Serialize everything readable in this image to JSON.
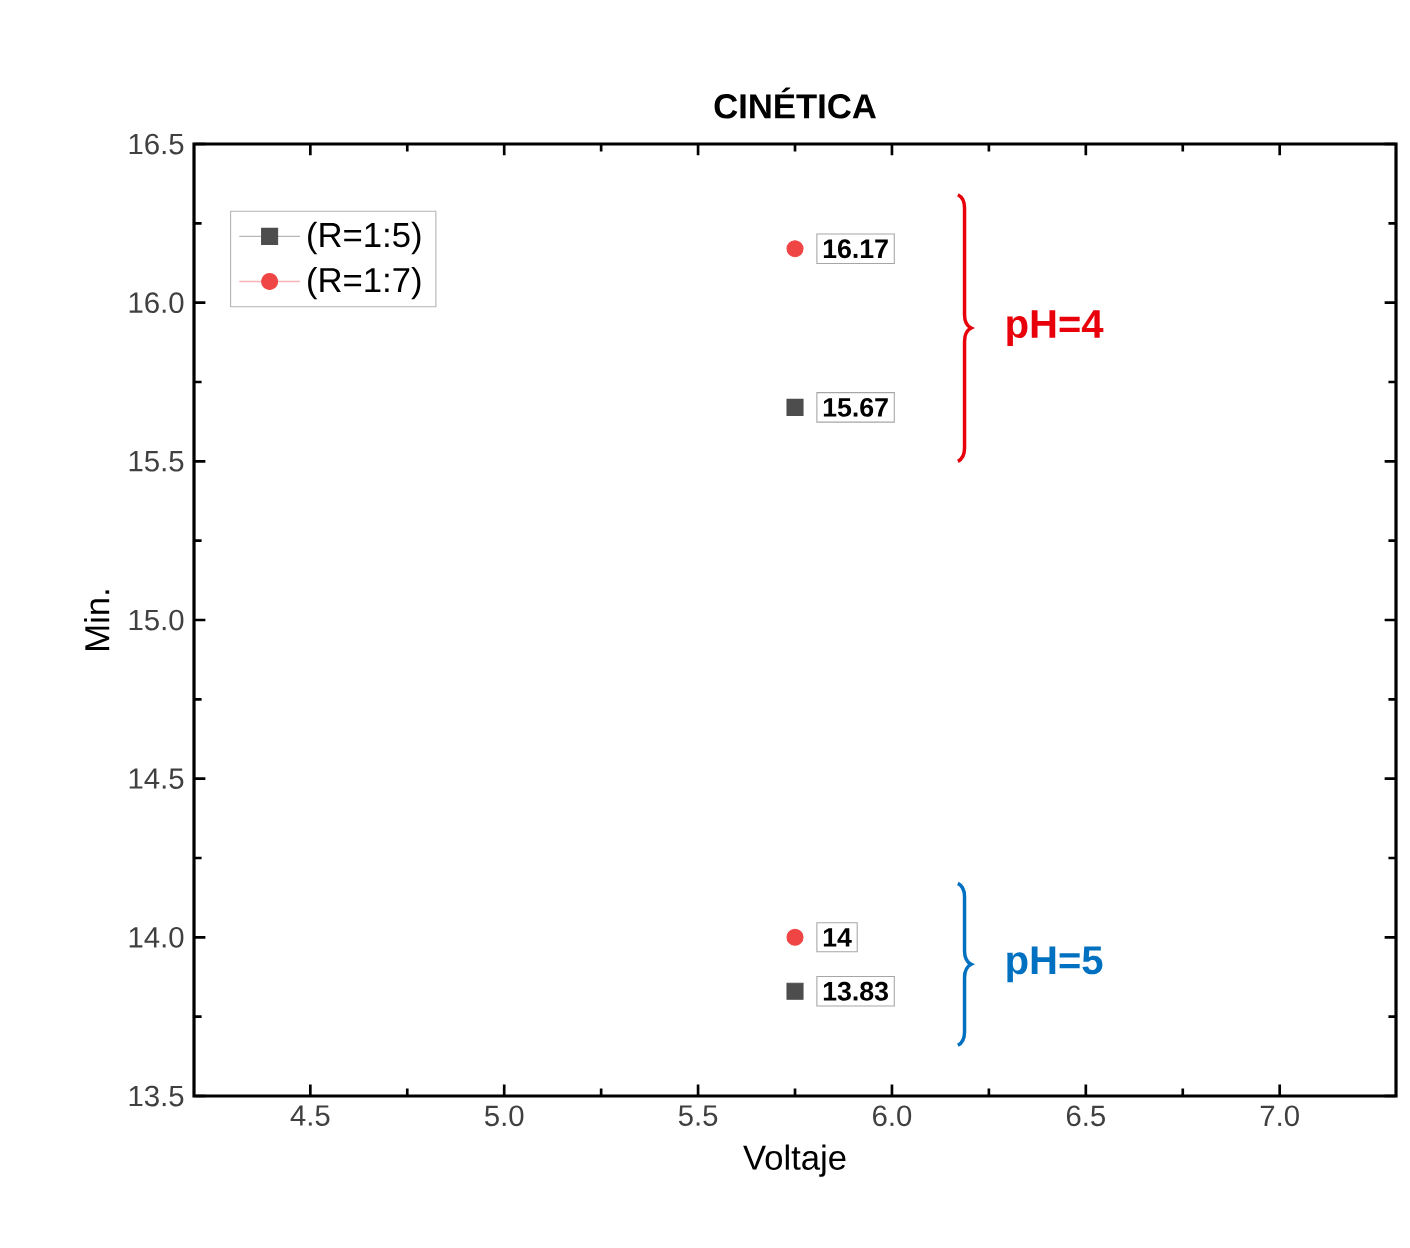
{
  "chart_data": {
    "type": "scatter",
    "title": "CINÉTICA",
    "xlabel": "Voltaje",
    "ylabel": "Min.",
    "xlim": [
      4.2,
      7.3
    ],
    "xticks": [
      4.5,
      {
        "value": 5,
        "label": "5.0"
      },
      5.5,
      {
        "value": 6,
        "label": "6.0"
      },
      6.5,
      {
        "value": 7,
        "label": "7.0"
      }
    ],
    "ylim": [
      13.5,
      16.5
    ],
    "yticks": [
      13.5,
      {
        "value": 14,
        "label": "14.0"
      },
      14.5,
      {
        "value": 15,
        "label": "15.0"
      },
      15.5,
      {
        "value": 16,
        "label": "16.0"
      },
      16.5
    ],
    "x": [
      5.75,
      5.75
    ],
    "series": [
      {
        "name": "(R=1:5)",
        "color": "#4d4d4d",
        "marker": "square",
        "values": [
          15.67,
          13.83
        ],
        "value_labels": [
          "15.67",
          "13.83"
        ]
      },
      {
        "name": "(R=1:7)",
        "color": "#f04545",
        "marker": "circle",
        "values": [
          16.17,
          14
        ],
        "value_labels": [
          "16.17",
          "14"
        ]
      }
    ],
    "annotations": [
      "pH=4",
      "pH=5"
    ],
    "legend": "top left",
    "grid": false
  }
}
